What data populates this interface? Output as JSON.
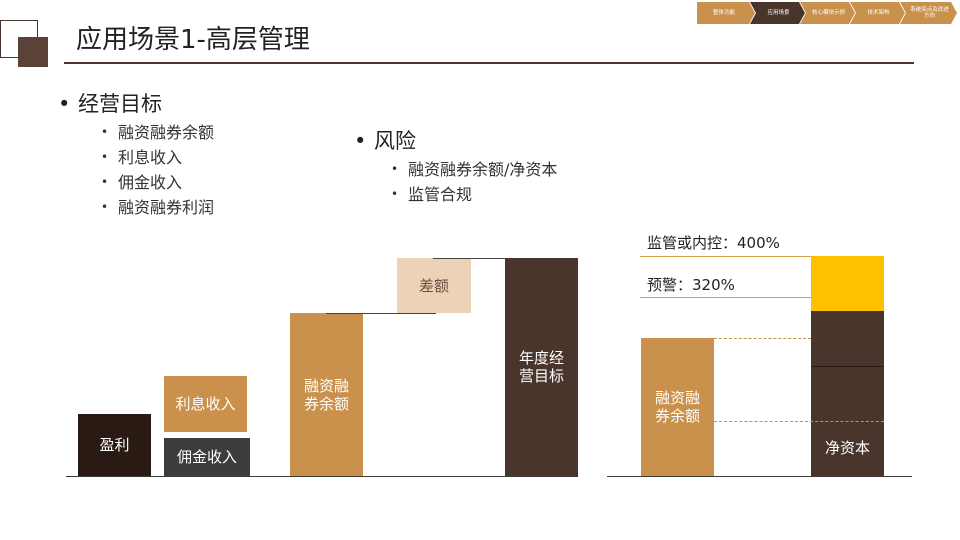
{
  "header": {
    "title": "应用场景1-高层管理"
  },
  "nav": {
    "items": [
      {
        "label": "整体功能",
        "color": "#c9914b"
      },
      {
        "label": "应用场景",
        "color": "#4a352c"
      },
      {
        "label": "核心模块示例",
        "color": "#c9914b"
      },
      {
        "label": "技术架构",
        "color": "#c9914b"
      },
      {
        "label": "系统亮点及改进方向",
        "color": "#c9914b"
      }
    ]
  },
  "objectives": {
    "heading": "经营目标",
    "items": [
      "融资融券余额",
      "利息收入",
      "佣金收入",
      "融资融券利润"
    ]
  },
  "risk": {
    "heading": "风险",
    "items": [
      "融资融券余额/净资本",
      "监管合规"
    ]
  },
  "waterfall": {
    "profit": "盈利",
    "interest": "利息收入",
    "commission": "佣金收入",
    "balance": "融资融券余额",
    "gap": "差额",
    "target": "年度经营目标"
  },
  "ratio": {
    "regulatory_label": "监管或内控：400%",
    "warning_label": "预警：320%",
    "balance": "融资融券余额",
    "net_capital": "净资本"
  },
  "colors": {
    "dark_brown": "#4a352c",
    "black_brown": "#2a1a14",
    "copper": "#c9914b",
    "beige": "#ecd3b8",
    "gold": "#ffc000",
    "charcoal": "#3d3d3d"
  }
}
